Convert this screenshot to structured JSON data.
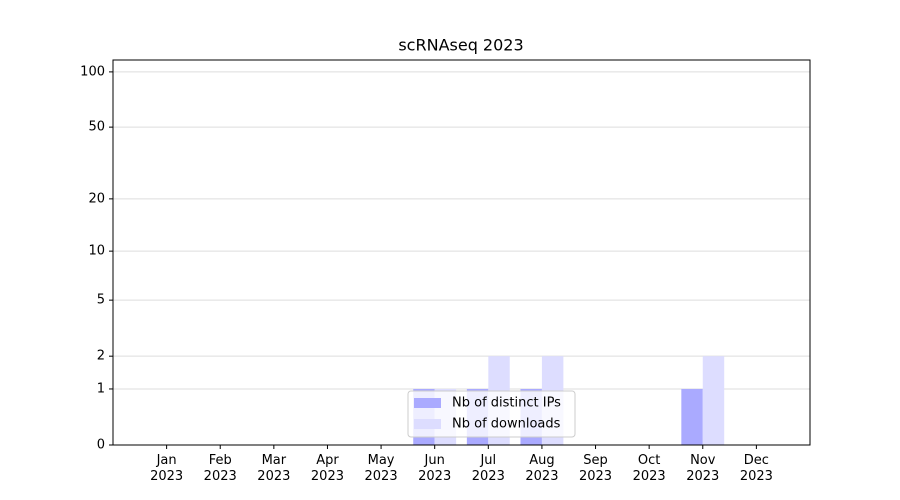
{
  "chart_data": {
    "type": "bar",
    "title": "scRNAseq 2023",
    "categories": [
      "Jan\n2023",
      "Feb\n2023",
      "Mar\n2023",
      "Apr\n2023",
      "May\n2023",
      "Jun\n2023",
      "Jul\n2023",
      "Aug\n2023",
      "Sep\n2023",
      "Oct\n2023",
      "Nov\n2023",
      "Dec\n2023"
    ],
    "series": [
      {
        "name": "Nb of distinct IPs",
        "color": "#aaaaff",
        "values": [
          0,
          0,
          0,
          0,
          0,
          1,
          1,
          1,
          0,
          0,
          1,
          0
        ]
      },
      {
        "name": "Nb of downloads",
        "color": "#ddddff",
        "values": [
          0,
          0,
          0,
          0,
          0,
          1,
          2,
          2,
          0,
          0,
          2,
          0
        ]
      }
    ],
    "yscale": "log1p",
    "ylim": [
      0,
      116
    ],
    "yticks": [
      0,
      1,
      2,
      5,
      10,
      20,
      50,
      100
    ],
    "grid": true,
    "legend": "lower center"
  }
}
